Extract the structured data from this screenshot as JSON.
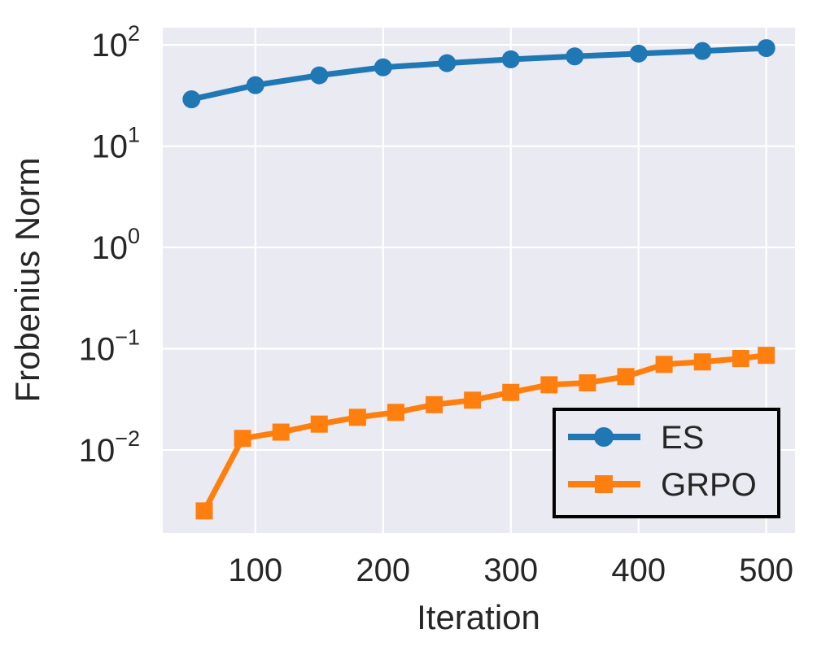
{
  "chart_data": {
    "type": "line",
    "title": "",
    "xlabel": "Iteration",
    "ylabel": "Frobenius Norm",
    "x_scale": "linear",
    "y_scale": "log",
    "x_ticks": [
      100,
      200,
      300,
      400,
      500
    ],
    "y_tick_exponents": [
      2,
      1,
      0,
      -1,
      -2
    ],
    "xlim": [
      27.5,
      522.5
    ],
    "ylim_log10": [
      -2.82,
      2.17
    ],
    "grid": true,
    "legend": {
      "position": "lower right",
      "entries": [
        "ES",
        "GRPO"
      ]
    },
    "series": [
      {
        "name": "ES",
        "color": "#1f77b4",
        "marker": "circle",
        "x": [
          50,
          100,
          150,
          200,
          250,
          300,
          350,
          400,
          450,
          500
        ],
        "y": [
          29,
          40,
          50,
          60,
          66,
          72,
          77,
          82,
          87,
          93
        ]
      },
      {
        "name": "GRPO",
        "color": "#ff7f0e",
        "marker": "square",
        "x": [
          60,
          90,
          120,
          150,
          180,
          210,
          240,
          270,
          300,
          330,
          360,
          390,
          420,
          450,
          480,
          500
        ],
        "y": [
          0.0025,
          0.013,
          0.015,
          0.018,
          0.021,
          0.0235,
          0.028,
          0.031,
          0.037,
          0.044,
          0.046,
          0.053,
          0.07,
          0.074,
          0.08,
          0.086
        ]
      }
    ],
    "style": {
      "plot_bg_color": "#eaeaf2",
      "grid_color": "#ffffff",
      "text_color": "#262626",
      "legend_face_color": "#eaeaf2",
      "legend_border_color": "#000000"
    }
  }
}
